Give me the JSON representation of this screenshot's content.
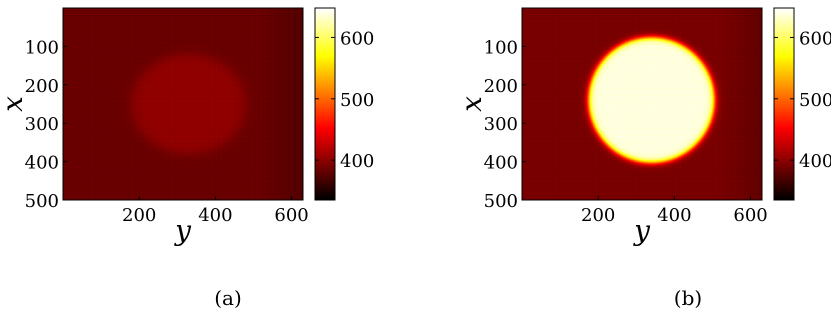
{
  "figure": {
    "panels": [
      "(a)",
      "(b)"
    ]
  },
  "chart_data": [
    {
      "type": "heatmap",
      "panel_label": "(a)",
      "xlabel": "y",
      "ylabel": "x",
      "x_ticks": [
        200,
        400,
        600
      ],
      "y_ticks": [
        100,
        200,
        300,
        400,
        500
      ],
      "xlim": [
        0,
        630
      ],
      "ylim": [
        500,
        0
      ],
      "colorbar": {
        "ticks": [
          400,
          500,
          600
        ],
        "range": [
          335,
          648
        ],
        "colormap": "hot"
      },
      "intensity": {
        "background": 385,
        "center": [
          330,
          250
        ],
        "radii": [
          150,
          130
        ],
        "peak": 403,
        "edge_falloff": 50
      },
      "colors": {
        "grid_dot": "#ffffff"
      }
    },
    {
      "type": "heatmap",
      "panel_label": "(b)",
      "xlabel": "y",
      "ylabel": "x",
      "x_ticks": [
        200,
        400,
        600
      ],
      "y_ticks": [
        100,
        200,
        300,
        400,
        500
      ],
      "xlim": [
        0,
        630
      ],
      "ylim": [
        500,
        0
      ],
      "colorbar": {
        "ticks": [
          400,
          500,
          600
        ],
        "range": [
          335,
          648
        ],
        "colormap": "hot"
      },
      "intensity": {
        "background": 392,
        "center": [
          340,
          240
        ],
        "radii": [
          165,
          163
        ],
        "peak": 640,
        "edge_falloff": 28
      },
      "colors": {
        "grid_dot": "#ffffff"
      }
    }
  ]
}
